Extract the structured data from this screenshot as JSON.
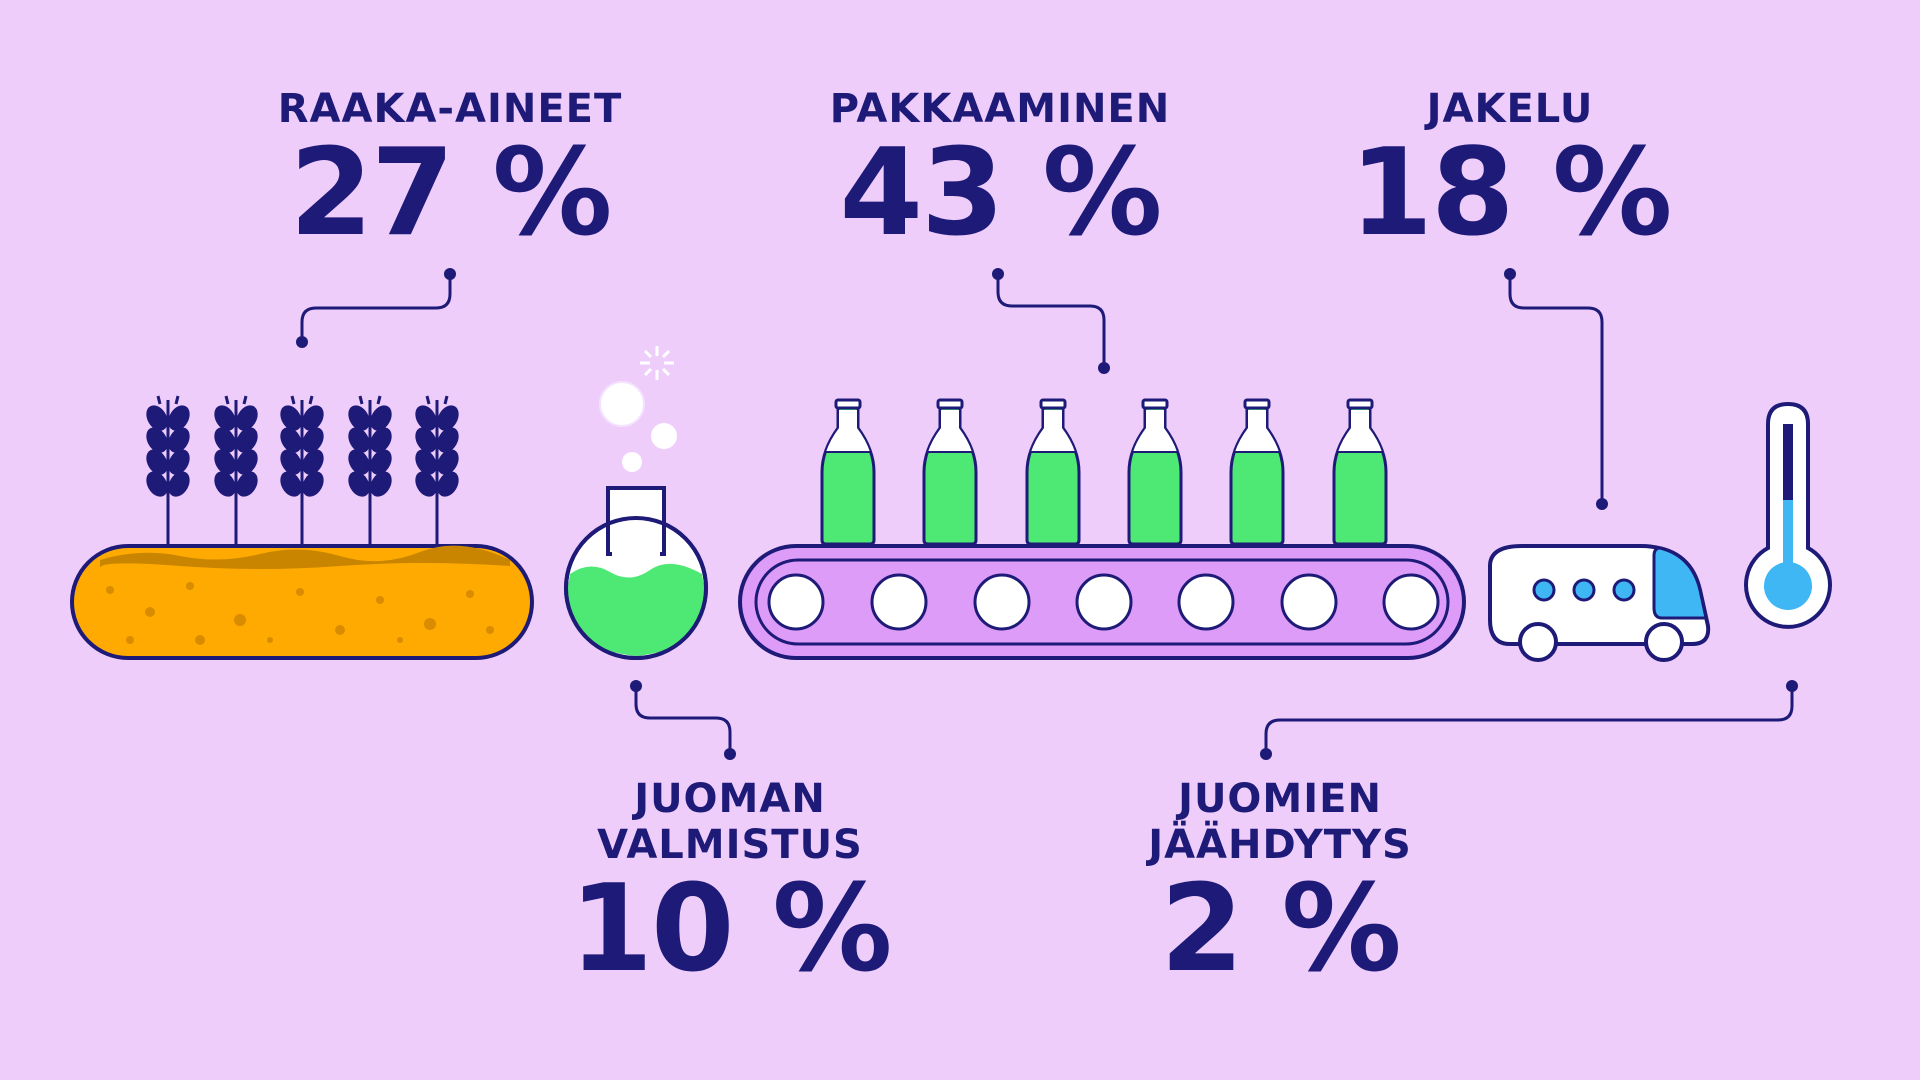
{
  "segments": [
    {
      "id": "raaka-aineet",
      "name_lines": [
        "RAAKA-AINEET"
      ],
      "percent": "27 %",
      "value": 27
    },
    {
      "id": "pakkaaminen",
      "name_lines": [
        "PAKKAAMINEN"
      ],
      "percent": "43 %",
      "value": 43
    },
    {
      "id": "jakelu",
      "name_lines": [
        "JAKELU"
      ],
      "percent": "18 %",
      "value": 18
    },
    {
      "id": "juoman-valmistus",
      "name_lines": [
        "JUOMAN",
        "VALMISTUS"
      ],
      "percent": "10 %",
      "value": 10
    },
    {
      "id": "juomien-jaahdytys",
      "name_lines": [
        "JUOMIEN",
        "JÄÄHDYTYS"
      ],
      "percent": "2 %",
      "value": 2
    }
  ],
  "colors": {
    "background": "#efcdfb",
    "ink": "#1e1a78",
    "field": "#ffaa00",
    "liquid": "#4ee874",
    "conveyor": "#dc9cf7",
    "van_window": "#3fb7f5"
  },
  "icons": [
    "wheat-icon",
    "flask-icon",
    "bottle-icon",
    "conveyor-icon",
    "van-icon",
    "thermometer-icon"
  ]
}
